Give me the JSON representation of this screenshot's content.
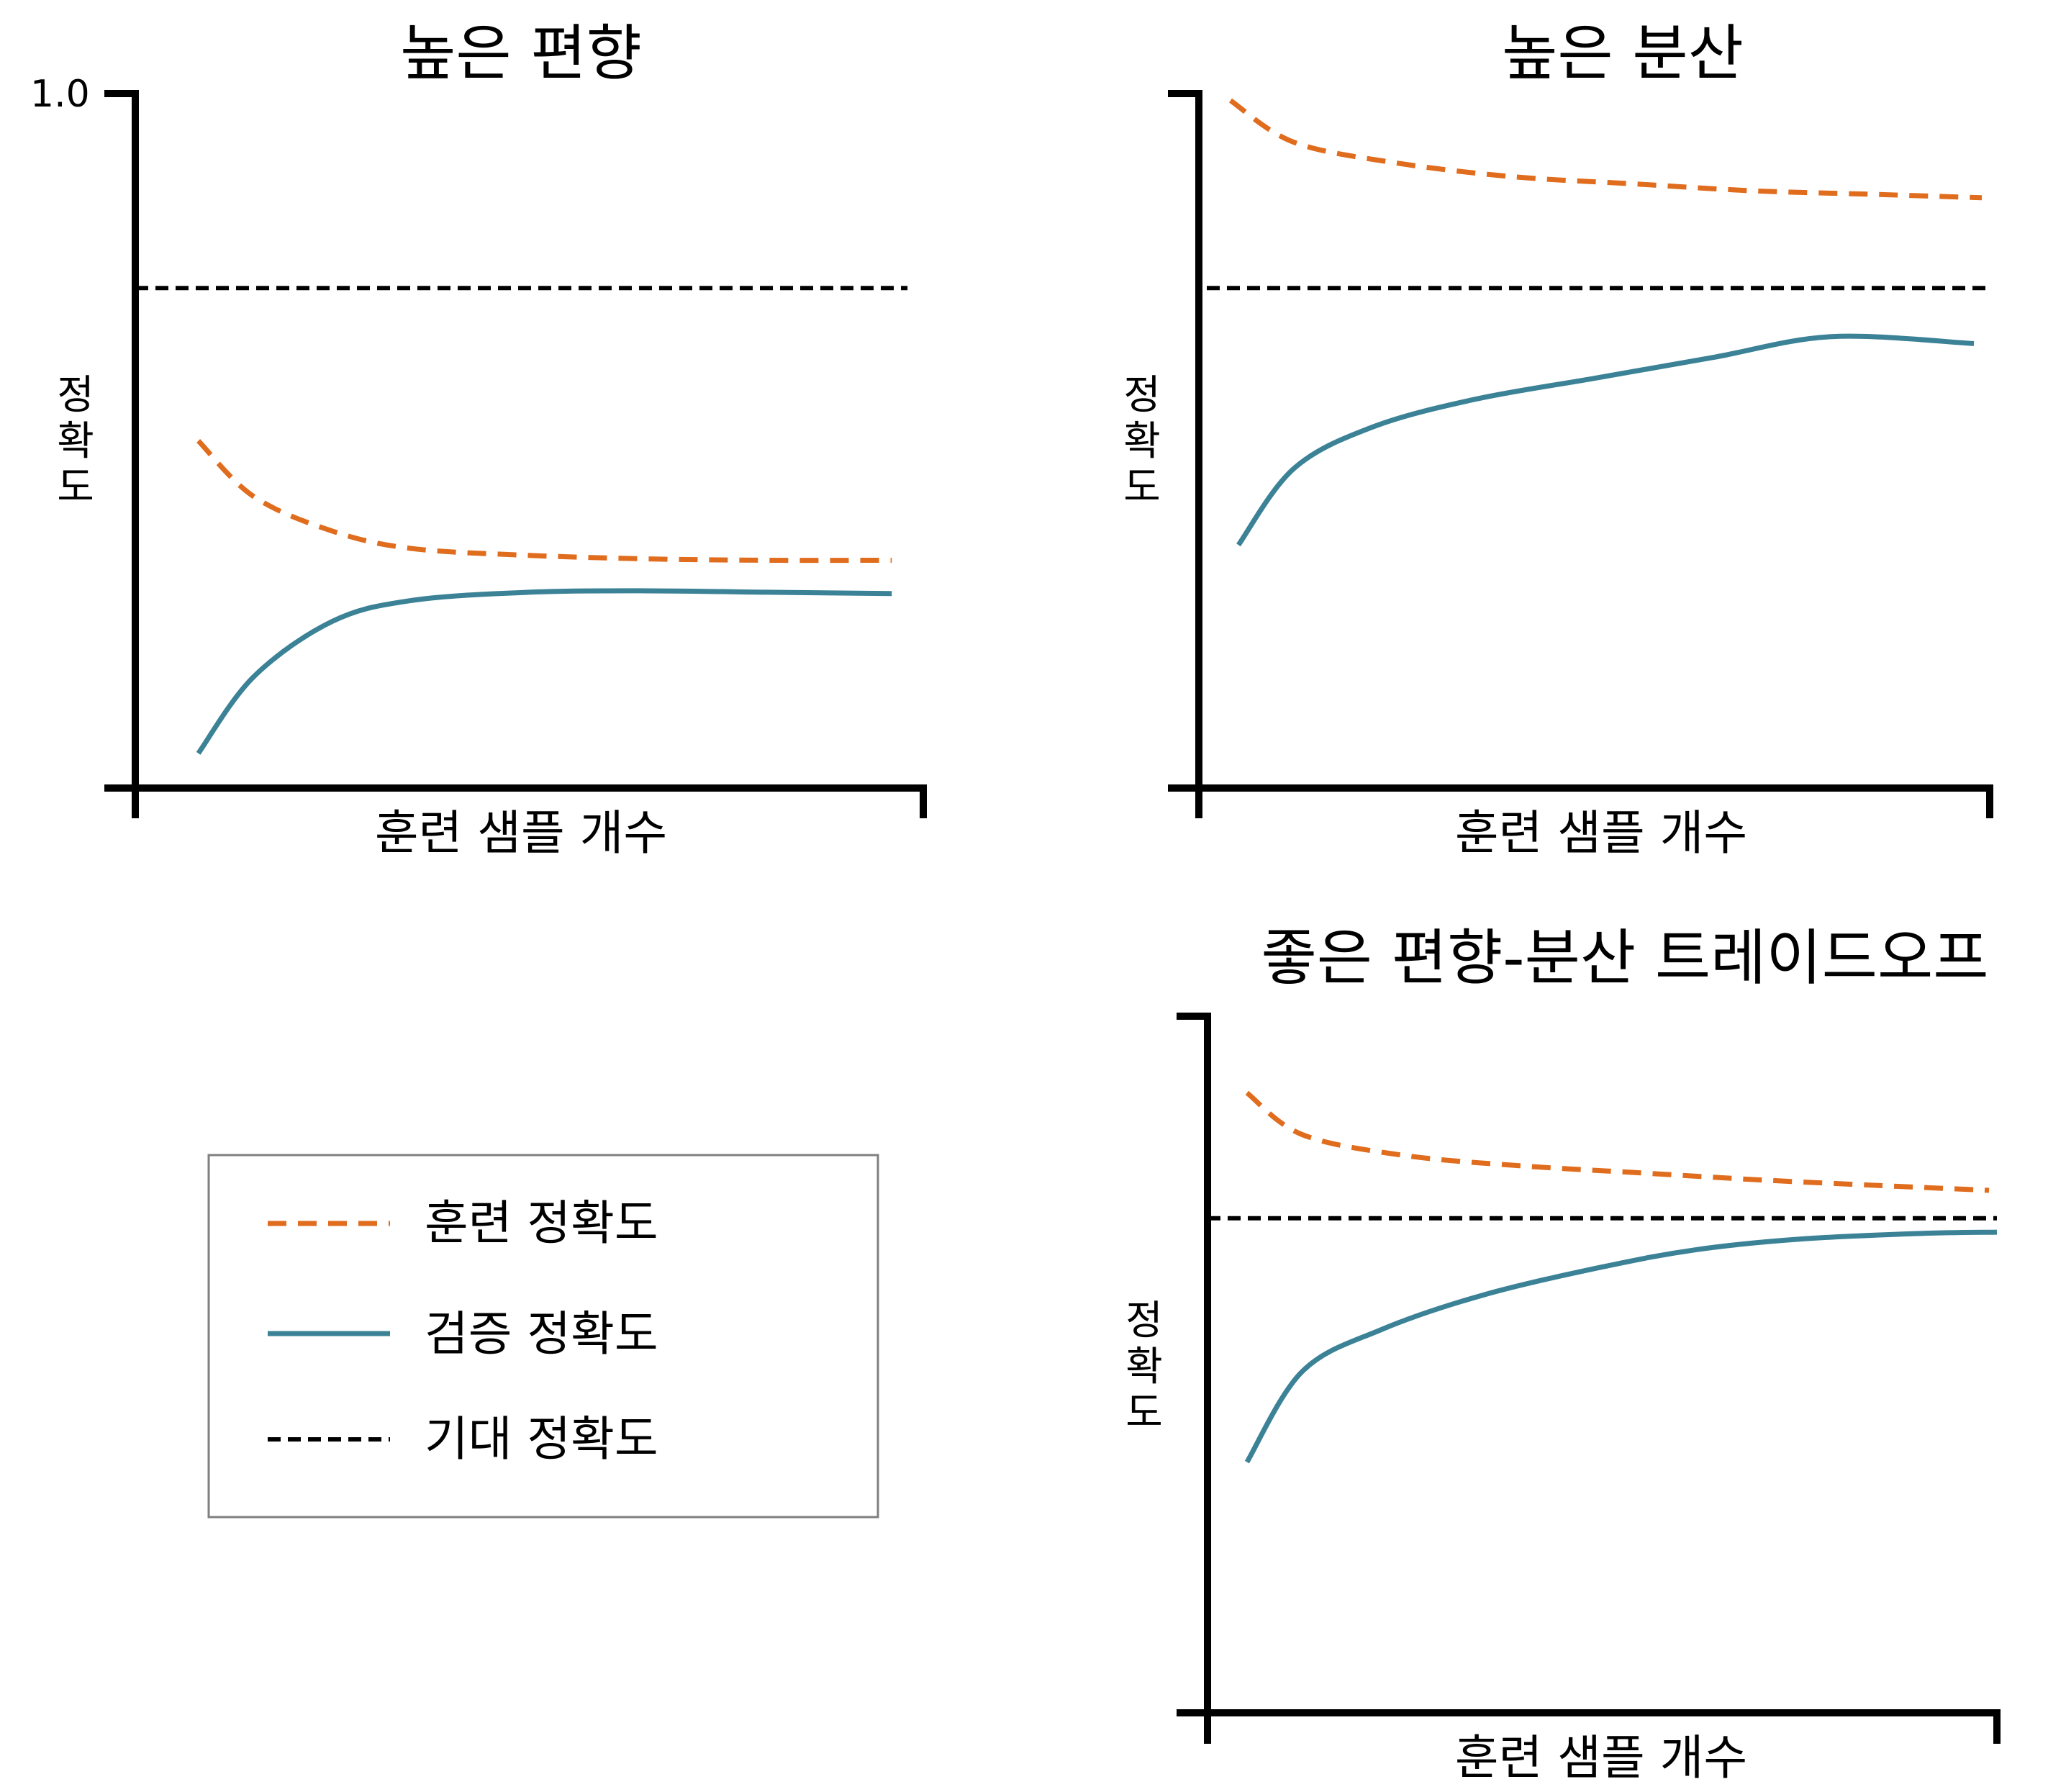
{
  "colors": {
    "train": "#e06c1e",
    "validation": "#3b8297",
    "expected": "#000000"
  },
  "legend": {
    "items": [
      {
        "key": "train",
        "label": "훈련 정확도",
        "style": "dashed"
      },
      {
        "key": "validation",
        "label": "검증 정확도",
        "style": "solid"
      },
      {
        "key": "expected",
        "label": "기대 정확도",
        "style": "dashed"
      }
    ]
  },
  "chart_data": [
    {
      "type": "line",
      "title": "높은 편향",
      "xlabel": "훈련 샘플 개수",
      "ylabel": "정확도",
      "ylim": [
        0,
        1.0
      ],
      "yticks": [
        "1.0"
      ],
      "xlim": [
        0,
        1.0
      ],
      "series": [
        {
          "name": "훈련 정확도",
          "key": "train",
          "x": [
            0.08,
            0.15,
            0.25,
            0.35,
            0.5,
            0.65,
            0.8,
            0.96
          ],
          "y": [
            0.5,
            0.42,
            0.37,
            0.345,
            0.335,
            0.33,
            0.328,
            0.328
          ]
        },
        {
          "name": "검증 정확도",
          "key": "validation",
          "x": [
            0.08,
            0.15,
            0.25,
            0.35,
            0.5,
            0.65,
            0.8,
            0.96
          ],
          "y": [
            0.05,
            0.16,
            0.24,
            0.27,
            0.282,
            0.284,
            0.282,
            0.28
          ]
        },
        {
          "name": "기대 정확도",
          "key": "expected",
          "x": [
            0.0,
            0.98
          ],
          "y": [
            0.72,
            0.72
          ]
        }
      ]
    },
    {
      "type": "line",
      "title": "높은 분산",
      "xlabel": "훈련 샘플 개수",
      "ylabel": "정확도",
      "ylim": [
        0,
        1.0
      ],
      "xlim": [
        0,
        1.0
      ],
      "series": [
        {
          "name": "훈련 정확도",
          "key": "train",
          "x": [
            0.04,
            0.12,
            0.25,
            0.4,
            0.55,
            0.7,
            0.85,
            0.99
          ],
          "y": [
            0.99,
            0.93,
            0.9,
            0.88,
            0.87,
            0.86,
            0.855,
            0.85
          ]
        },
        {
          "name": "검증 정확도",
          "key": "validation",
          "x": [
            0.05,
            0.12,
            0.22,
            0.35,
            0.5,
            0.65,
            0.8,
            0.98
          ],
          "y": [
            0.35,
            0.46,
            0.52,
            0.56,
            0.59,
            0.62,
            0.65,
            0.64
          ]
        },
        {
          "name": "기대 정확도",
          "key": "expected",
          "x": [
            0.01,
            1.0
          ],
          "y": [
            0.72,
            0.72
          ]
        }
      ]
    },
    {
      "type": "line",
      "title": "좋은 편향-분산 트레이드오프",
      "xlabel": "훈련 샘플 개수",
      "ylabel": "정확도",
      "ylim": [
        0,
        1.0
      ],
      "xlim": [
        0,
        1.0
      ],
      "series": [
        {
          "name": "훈련 정확도",
          "key": "train",
          "x": [
            0.05,
            0.12,
            0.25,
            0.4,
            0.55,
            0.7,
            0.85,
            0.99
          ],
          "y": [
            0.89,
            0.83,
            0.8,
            0.785,
            0.775,
            0.765,
            0.757,
            0.75
          ]
        },
        {
          "name": "검증 정확도",
          "key": "validation",
          "x": [
            0.05,
            0.12,
            0.22,
            0.35,
            0.5,
            0.62,
            0.75,
            0.9,
            1.0
          ],
          "y": [
            0.36,
            0.49,
            0.55,
            0.6,
            0.64,
            0.665,
            0.68,
            0.688,
            0.69
          ]
        },
        {
          "name": "기대 정확도",
          "key": "expected",
          "x": [
            0.0,
            1.0
          ],
          "y": [
            0.71,
            0.71
          ]
        }
      ]
    }
  ]
}
